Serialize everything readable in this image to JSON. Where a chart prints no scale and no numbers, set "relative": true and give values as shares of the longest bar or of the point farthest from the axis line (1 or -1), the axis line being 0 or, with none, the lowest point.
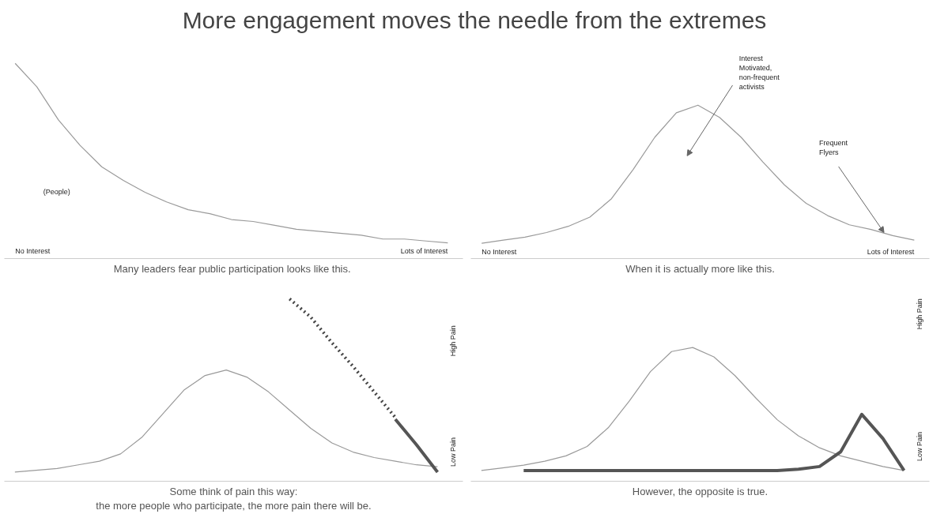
{
  "chart_data": [
    {
      "type": "line",
      "relative": true,
      "tick_labels": false,
      "title": "More engagement moves the needle from the extremes",
      "xlabel": "Many leaders fear public  participation looks like this.",
      "categories": [
        null,
        null,
        null,
        null,
        null,
        null,
        null,
        null,
        null,
        null,
        null,
        null,
        null,
        null,
        null,
        null,
        null,
        null,
        null,
        null,
        null
      ],
      "series": [
        {
          "color": "#9a9a9a",
          "line_style": "solid",
          "values": [
            1,
            0.88,
            0.71,
            0.58,
            0.47,
            0.4,
            0.34,
            0.29,
            0.25,
            0.23,
            0.2,
            0.19,
            0.17,
            0.15,
            0.14,
            0.13,
            0.12,
            0.1,
            0.1,
            0.09,
            0.08
          ]
        }
      ],
      "annotations": [
        "(People)",
        "No Interest",
        "Lots of Interest"
      ]
    },
    {
      "type": "line",
      "relative": true,
      "tick_labels": false,
      "xlabel": "When it is actually more like this.",
      "categories": [
        null,
        null,
        null,
        null,
        null,
        null,
        null,
        null,
        null,
        null,
        null,
        null,
        null,
        null,
        null,
        null,
        null,
        null,
        null,
        null,
        null
      ],
      "series": [
        {
          "color": "#9a9a9a",
          "line_style": "solid",
          "values": [
            0.1,
            0.12,
            0.14,
            0.17,
            0.21,
            0.27,
            0.39,
            0.58,
            0.79,
            0.95,
            1.0,
            0.92,
            0.79,
            0.63,
            0.48,
            0.36,
            0.28,
            0.22,
            0.19,
            0.15,
            0.12
          ]
        }
      ],
      "annotations": [
        "Interest\nMotivated,\nnon-frequent\nactivists",
        "Frequent\nFlyers",
        "No Interest",
        "Lots of Interest"
      ]
    },
    {
      "type": "line",
      "relative": true,
      "tick_labels": false,
      "xlabel": "Some think of pain this way:\nthe more people who participate, the more pain there will be.",
      "categories": [
        null,
        null,
        null,
        null,
        null,
        null,
        null,
        null,
        null,
        null,
        null,
        null,
        null,
        null,
        null,
        null,
        null,
        null,
        null,
        null,
        null
      ],
      "series": [
        {
          "color": "#9a9a9a",
          "line_style": "solid",
          "values": [
            0.05,
            0.06,
            0.07,
            0.09,
            0.11,
            0.15,
            0.24,
            0.37,
            0.5,
            0.58,
            0.61,
            0.57,
            0.49,
            0.39,
            0.29,
            0.21,
            0.16,
            0.13,
            0.11,
            0.09,
            0.08
          ]
        },
        {
          "color": "#444444",
          "line_style": "dotted",
          "values": [
            null,
            null,
            null,
            null,
            null,
            null,
            null,
            null,
            null,
            null,
            null,
            null,
            null,
            1.0,
            0.9,
            0.76,
            0.63,
            0.49,
            0.35,
            null,
            null
          ]
        },
        {
          "color": "#555555",
          "line_style": "solid",
          "values": [
            null,
            null,
            null,
            null,
            null,
            null,
            null,
            null,
            null,
            null,
            null,
            null,
            null,
            null,
            null,
            null,
            null,
            null,
            0.34,
            0.2,
            0.05
          ]
        }
      ],
      "annotations": [
        "High Pain",
        "Low Pain"
      ]
    },
    {
      "type": "line",
      "relative": true,
      "tick_labels": false,
      "xlabel": "However, the opposite is true.",
      "categories": [
        null,
        null,
        null,
        null,
        null,
        null,
        null,
        null,
        null,
        null,
        null,
        null,
        null,
        null,
        null,
        null,
        null,
        null,
        null,
        null,
        null
      ],
      "series": [
        {
          "color": "#9a9a9a",
          "line_style": "solid",
          "values": [
            0.08,
            0.1,
            0.12,
            0.15,
            0.19,
            0.26,
            0.4,
            0.6,
            0.82,
            0.97,
            1.0,
            0.93,
            0.79,
            0.62,
            0.46,
            0.34,
            0.25,
            0.19,
            0.15,
            0.11,
            0.08
          ]
        },
        {
          "color": "#555555",
          "line_style": "solid",
          "values": [
            null,
            null,
            0.08,
            0.08,
            0.08,
            0.08,
            0.08,
            0.08,
            0.08,
            0.08,
            0.08,
            0.08,
            0.08,
            0.08,
            0.08,
            0.09,
            0.11,
            0.22,
            0.5,
            0.32,
            0.08
          ]
        }
      ],
      "annotations": [
        "High Pain",
        "Low Pain"
      ]
    }
  ]
}
